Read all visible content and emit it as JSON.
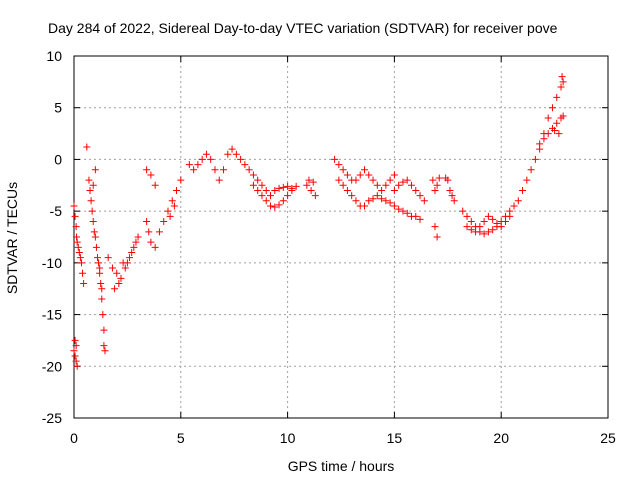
{
  "chart_data": {
    "type": "scatter",
    "title": "Day 284 of 2022, Sidereal Day-to-day VTEC variation (SDTVAR) for receiver pove",
    "xlabel": "GPS time / hours",
    "ylabel": "SDTVAR / TECUs",
    "xlim": [
      0,
      25
    ],
    "ylim": [
      -25,
      10
    ],
    "xticks": [
      0,
      5,
      10,
      15,
      20,
      25
    ],
    "yticks": [
      -25,
      -20,
      -15,
      -10,
      -5,
      0,
      5,
      10
    ],
    "xtick_labels": [
      "0",
      "5",
      "10",
      "15",
      "20",
      "25"
    ],
    "ytick_labels": [
      "-25",
      "-20",
      "-15",
      "-10",
      "-5",
      "0",
      "5",
      "10"
    ],
    "grid": true,
    "marker": "+",
    "color": "#ff0000",
    "series": [
      {
        "name": "SDTVAR",
        "points": [
          [
            0.0,
            -4.5
          ],
          [
            0.05,
            -5.5
          ],
          [
            0.1,
            -6.5
          ],
          [
            0.12,
            -7.5
          ],
          [
            0.15,
            -8.0
          ],
          [
            0.2,
            -8.5
          ],
          [
            0.25,
            -9.0
          ],
          [
            0.3,
            -9.5
          ],
          [
            0.35,
            -10.0
          ],
          [
            0.4,
            -11.0
          ],
          [
            0.45,
            -12.0
          ],
          [
            0.0,
            -18.5
          ],
          [
            0.05,
            -19.0
          ],
          [
            0.1,
            -19.5
          ],
          [
            0.15,
            -20.0
          ],
          [
            0.1,
            -18.0
          ],
          [
            0.05,
            -17.5
          ],
          [
            0.6,
            1.2
          ],
          [
            0.7,
            -2.0
          ],
          [
            0.75,
            -3.0
          ],
          [
            0.8,
            -4.0
          ],
          [
            0.85,
            -5.0
          ],
          [
            0.9,
            -6.0
          ],
          [
            0.95,
            -7.0
          ],
          [
            1.0,
            -7.5
          ],
          [
            1.05,
            -8.5
          ],
          [
            1.1,
            -9.5
          ],
          [
            1.15,
            -10.0
          ],
          [
            1.0,
            -1.0
          ],
          [
            0.9,
            -2.5
          ],
          [
            1.2,
            -11.0
          ],
          [
            1.25,
            -12.0
          ],
          [
            1.3,
            -13.5
          ],
          [
            1.35,
            -15.0
          ],
          [
            1.4,
            -16.5
          ],
          [
            1.4,
            -18.0
          ],
          [
            1.45,
            -18.5
          ],
          [
            1.3,
            -12.5
          ],
          [
            1.2,
            -10.5
          ],
          [
            1.6,
            -9.5
          ],
          [
            1.8,
            -10.5
          ],
          [
            2.0,
            -11.0
          ],
          [
            2.2,
            -11.5
          ],
          [
            2.4,
            -10.5
          ],
          [
            2.6,
            -9.5
          ],
          [
            2.8,
            -8.5
          ],
          [
            3.0,
            -7.5
          ],
          [
            1.9,
            -12.5
          ],
          [
            2.1,
            -12.0
          ],
          [
            2.3,
            -10.0
          ],
          [
            2.5,
            -10.0
          ],
          [
            2.7,
            -9.0
          ],
          [
            2.9,
            -8.0
          ],
          [
            3.4,
            -1.0
          ],
          [
            3.6,
            -1.5
          ],
          [
            3.8,
            -2.5
          ],
          [
            3.4,
            -6.0
          ],
          [
            3.5,
            -7.0
          ],
          [
            3.6,
            -8.0
          ],
          [
            3.8,
            -8.5
          ],
          [
            4.0,
            -7.0
          ],
          [
            4.2,
            -6.0
          ],
          [
            4.4,
            -5.0
          ],
          [
            4.6,
            -4.0
          ],
          [
            4.8,
            -3.0
          ],
          [
            5.0,
            -2.0
          ],
          [
            4.5,
            -5.5
          ],
          [
            4.7,
            -4.5
          ],
          [
            5.4,
            -0.5
          ],
          [
            5.6,
            -1.0
          ],
          [
            5.8,
            -0.5
          ],
          [
            6.0,
            0.0
          ],
          [
            6.2,
            0.5
          ],
          [
            6.4,
            0.0
          ],
          [
            6.6,
            -1.0
          ],
          [
            6.8,
            -2.0
          ],
          [
            7.0,
            -1.0
          ],
          [
            7.2,
            0.5
          ],
          [
            7.4,
            1.0
          ],
          [
            7.6,
            0.5
          ],
          [
            7.8,
            0.0
          ],
          [
            8.0,
            -0.5
          ],
          [
            8.2,
            -1.0
          ],
          [
            8.4,
            -1.5
          ],
          [
            8.6,
            -2.0
          ],
          [
            8.8,
            -2.5
          ],
          [
            9.0,
            -3.0
          ],
          [
            9.2,
            -3.5
          ],
          [
            9.4,
            -3.0
          ],
          [
            9.6,
            -2.8
          ],
          [
            9.8,
            -2.7
          ],
          [
            10.0,
            -2.6
          ],
          [
            10.2,
            -2.8
          ],
          [
            10.4,
            -2.6
          ],
          [
            8.4,
            -2.5
          ],
          [
            8.6,
            -3.0
          ],
          [
            8.8,
            -3.5
          ],
          [
            9.0,
            -4.0
          ],
          [
            9.2,
            -4.5
          ],
          [
            9.4,
            -4.6
          ],
          [
            9.6,
            -4.4
          ],
          [
            9.8,
            -4.0
          ],
          [
            10.0,
            -3.5
          ],
          [
            10.2,
            -3.0
          ],
          [
            10.9,
            -2.5
          ],
          [
            11.1,
            -3.0
          ],
          [
            11.3,
            -3.5
          ],
          [
            11.0,
            -2.0
          ],
          [
            11.2,
            -2.2
          ],
          [
            12.2,
            0.0
          ],
          [
            12.4,
            -0.5
          ],
          [
            12.6,
            -1.0
          ],
          [
            12.8,
            -1.5
          ],
          [
            13.0,
            -2.0
          ],
          [
            13.2,
            -2.0
          ],
          [
            13.4,
            -1.5
          ],
          [
            13.6,
            -1.0
          ],
          [
            13.8,
            -1.5
          ],
          [
            14.0,
            -2.0
          ],
          [
            14.2,
            -2.5
          ],
          [
            14.4,
            -3.0
          ],
          [
            14.6,
            -2.5
          ],
          [
            14.8,
            -2.0
          ],
          [
            15.0,
            -1.5
          ],
          [
            12.4,
            -2.0
          ],
          [
            12.6,
            -2.5
          ],
          [
            12.8,
            -3.0
          ],
          [
            13.0,
            -3.5
          ],
          [
            13.2,
            -4.0
          ],
          [
            13.4,
            -4.5
          ],
          [
            13.6,
            -4.5
          ],
          [
            13.8,
            -4.0
          ],
          [
            14.0,
            -3.8
          ],
          [
            14.2,
            -3.5
          ],
          [
            14.4,
            -3.8
          ],
          [
            14.6,
            -4.0
          ],
          [
            14.8,
            -4.2
          ],
          [
            15.0,
            -4.5
          ],
          [
            15.2,
            -4.8
          ],
          [
            15.4,
            -5.0
          ],
          [
            15.6,
            -5.2
          ],
          [
            15.8,
            -5.5
          ],
          [
            16.0,
            -5.5
          ],
          [
            16.2,
            -5.8
          ],
          [
            15.0,
            -3.0
          ],
          [
            15.2,
            -2.5
          ],
          [
            15.4,
            -2.2
          ],
          [
            15.6,
            -2.0
          ],
          [
            15.8,
            -2.5
          ],
          [
            16.0,
            -3.0
          ],
          [
            16.2,
            -3.5
          ],
          [
            16.4,
            -4.0
          ],
          [
            16.8,
            -2.0
          ],
          [
            17.0,
            -2.5
          ],
          [
            16.9,
            -3.0
          ],
          [
            17.1,
            -1.8
          ],
          [
            16.9,
            -6.5
          ],
          [
            17.0,
            -7.5
          ],
          [
            17.5,
            -2.0
          ],
          [
            17.6,
            -3.0
          ],
          [
            17.8,
            -4.0
          ],
          [
            17.4,
            -1.8
          ],
          [
            17.7,
            -3.5
          ],
          [
            18.2,
            -5.0
          ],
          [
            18.4,
            -5.5
          ],
          [
            18.6,
            -6.0
          ],
          [
            18.8,
            -6.5
          ],
          [
            19.0,
            -7.0
          ],
          [
            19.2,
            -7.2
          ],
          [
            19.4,
            -7.0
          ],
          [
            19.6,
            -6.8
          ],
          [
            19.8,
            -6.5
          ],
          [
            20.0,
            -6.0
          ],
          [
            20.2,
            -5.5
          ],
          [
            20.4,
            -5.0
          ],
          [
            20.6,
            -4.5
          ],
          [
            20.8,
            -4.0
          ],
          [
            21.0,
            -3.0
          ],
          [
            18.4,
            -6.5
          ],
          [
            18.6,
            -6.8
          ],
          [
            18.8,
            -7.0
          ],
          [
            19.0,
            -6.5
          ],
          [
            19.2,
            -6.0
          ],
          [
            19.4,
            -5.5
          ],
          [
            19.6,
            -5.8
          ],
          [
            19.8,
            -6.2
          ],
          [
            20.0,
            -6.5
          ],
          [
            20.2,
            -6.0
          ],
          [
            20.4,
            -5.5
          ],
          [
            21.2,
            -2.0
          ],
          [
            21.4,
            -1.0
          ],
          [
            21.6,
            0.0
          ],
          [
            21.8,
            1.0
          ],
          [
            22.0,
            2.5
          ],
          [
            22.2,
            4.0
          ],
          [
            22.4,
            5.0
          ],
          [
            22.6,
            6.0
          ],
          [
            22.8,
            7.0
          ],
          [
            22.9,
            7.5
          ],
          [
            22.85,
            8.0
          ],
          [
            21.8,
            1.5
          ],
          [
            22.0,
            2.0
          ],
          [
            22.2,
            2.5
          ],
          [
            22.4,
            3.0
          ],
          [
            22.6,
            3.5
          ],
          [
            22.8,
            4.0
          ],
          [
            22.9,
            4.2
          ],
          [
            22.7,
            2.5
          ],
          [
            22.5,
            2.8
          ]
        ]
      }
    ]
  }
}
